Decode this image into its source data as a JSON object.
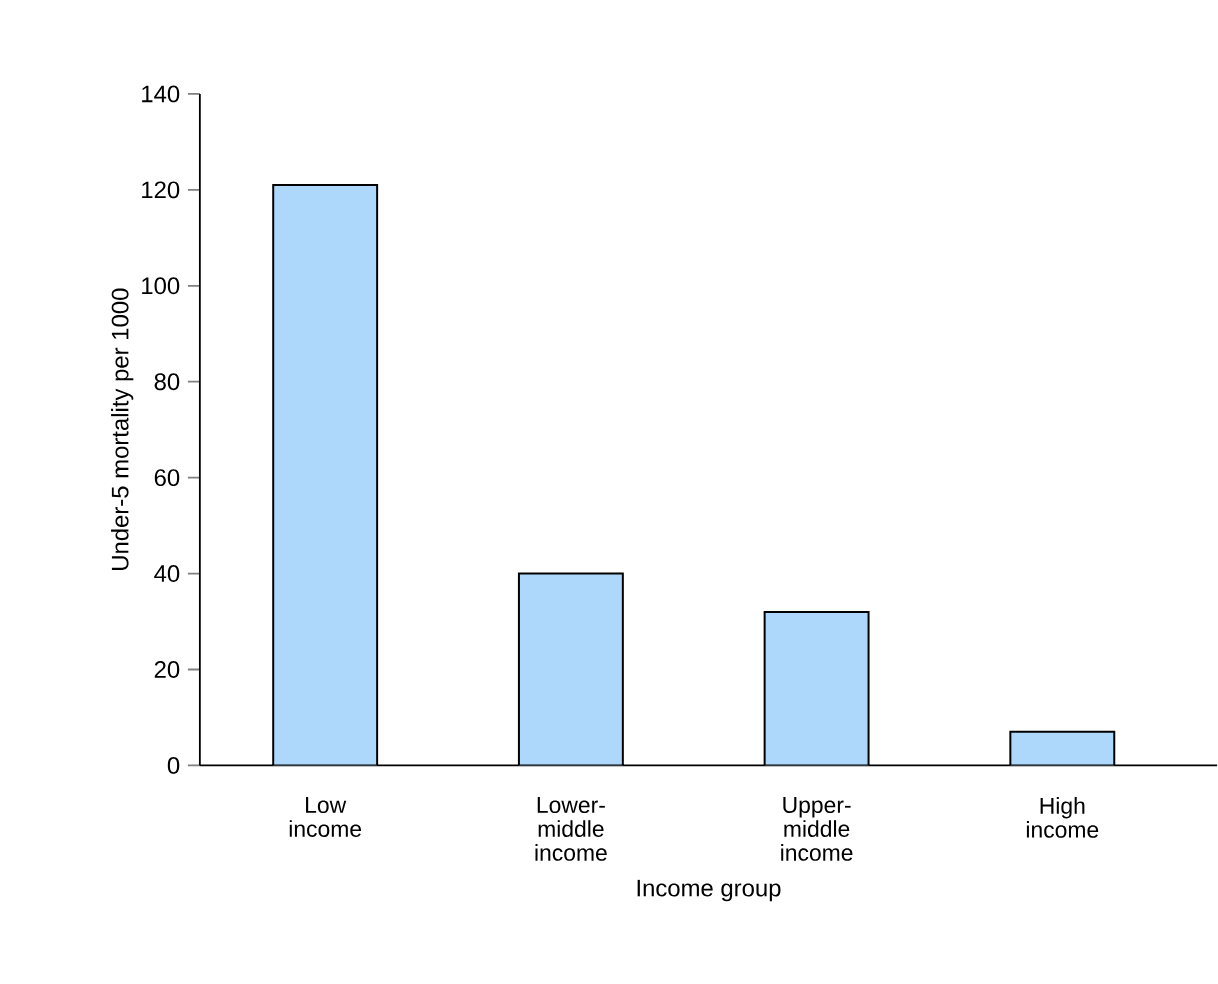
{
  "chart_data": {
    "type": "bar",
    "categories": [
      "Low income",
      "Lower-middle income",
      "Upper-middle income",
      "High income"
    ],
    "values": [
      121,
      40,
      32,
      7
    ],
    "color": "#add8fb",
    "xlabel": "Income group",
    "ylabel": "Under-5 mortality per 1000",
    "ylim": [
      0,
      140
    ],
    "yticks": [
      0,
      20,
      40,
      60,
      80,
      100,
      120,
      140
    ]
  }
}
